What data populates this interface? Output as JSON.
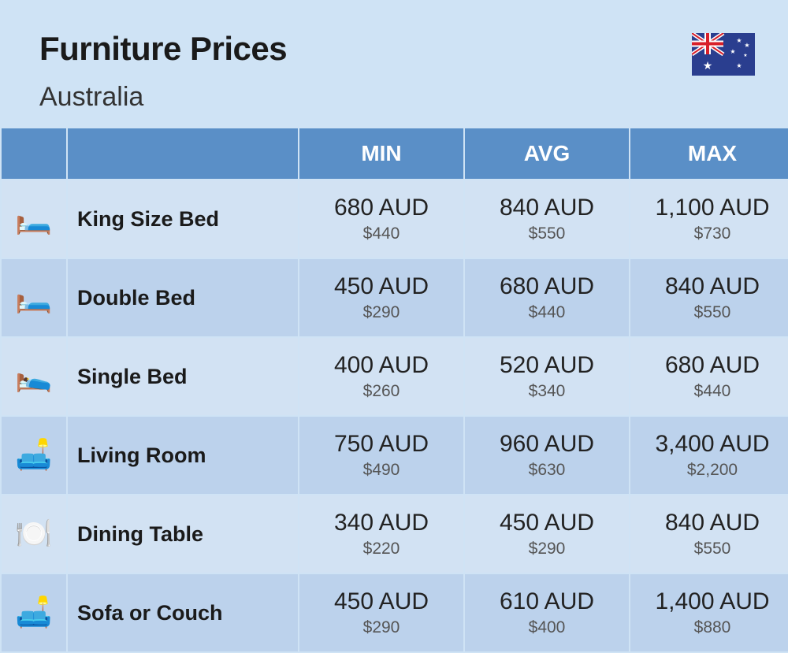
{
  "header": {
    "title": "Furniture Prices",
    "subtitle": "Australia"
  },
  "columns": {
    "min": "MIN",
    "avg": "AVG",
    "max": "MAX"
  },
  "colors": {
    "page_bg": "#cfe3f5",
    "header_row_bg": "#5a8fc7",
    "header_row_text": "#ffffff",
    "row_odd_bg": "#d2e2f3",
    "row_even_bg": "#bcd2ec",
    "price_main": "#222222",
    "price_sub": "#555555"
  },
  "flag": {
    "bg": "#2a3e8f",
    "red": "#d8202a",
    "white": "#ffffff"
  },
  "rows": [
    {
      "icon": "🛏️",
      "name": "King Size Bed",
      "min_aud": "680 AUD",
      "min_usd": "$440",
      "avg_aud": "840 AUD",
      "avg_usd": "$550",
      "max_aud": "1,100 AUD",
      "max_usd": "$730"
    },
    {
      "icon": "🛏️",
      "name": "Double Bed",
      "min_aud": "450 AUD",
      "min_usd": "$290",
      "avg_aud": "680 AUD",
      "avg_usd": "$440",
      "max_aud": "840 AUD",
      "max_usd": "$550"
    },
    {
      "icon": "🛌",
      "name": "Single Bed",
      "min_aud": "400 AUD",
      "min_usd": "$260",
      "avg_aud": "520 AUD",
      "avg_usd": "$340",
      "max_aud": "680 AUD",
      "max_usd": "$440"
    },
    {
      "icon": "🛋️",
      "name": "Living Room",
      "min_aud": "750 AUD",
      "min_usd": "$490",
      "avg_aud": "960 AUD",
      "avg_usd": "$630",
      "max_aud": "3,400 AUD",
      "max_usd": "$2,200"
    },
    {
      "icon": "🍽️",
      "name": "Dining Table",
      "min_aud": "340 AUD",
      "min_usd": "$220",
      "avg_aud": "450 AUD",
      "avg_usd": "$290",
      "max_aud": "840 AUD",
      "max_usd": "$550"
    },
    {
      "icon": "🛋️",
      "name": "Sofa or Couch",
      "min_aud": "450 AUD",
      "min_usd": "$290",
      "avg_aud": "610 AUD",
      "avg_usd": "$400",
      "max_aud": "1,400 AUD",
      "max_usd": "$880"
    }
  ]
}
